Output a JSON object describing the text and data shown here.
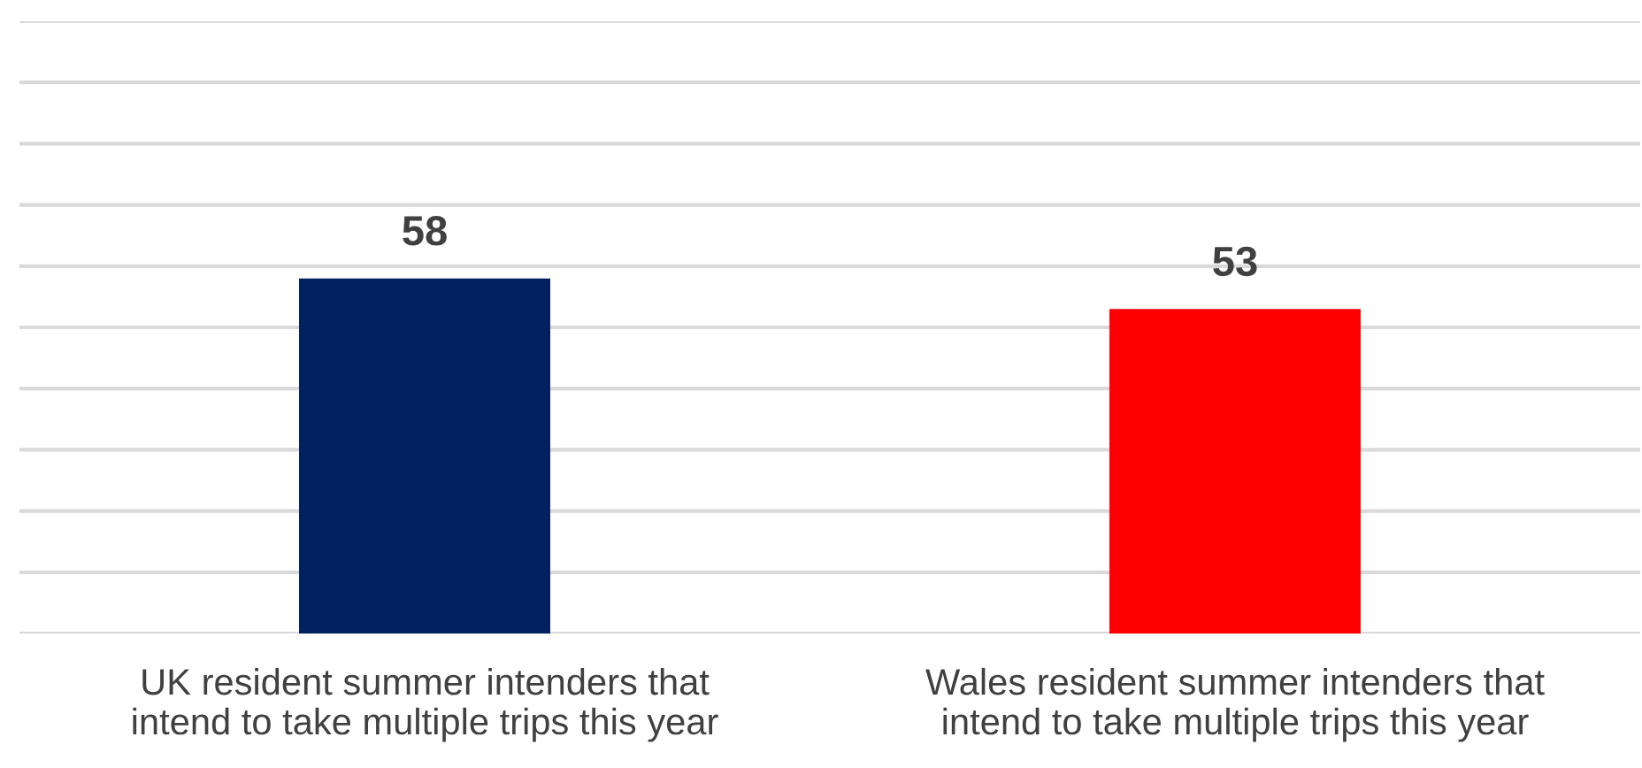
{
  "chart_data": {
    "type": "bar",
    "categories": [
      "UK resident summer intenders that intend to take multiple trips this year",
      "Wales resident summer intenders that intend to take multiple trips this year"
    ],
    "values": [
      58,
      53
    ],
    "colors": [
      "#002060",
      "#ff0000"
    ],
    "ylim": [
      0,
      100
    ],
    "yticks": [
      {
        "value": 0,
        "label": null
      },
      {
        "value": 10,
        "label": null
      },
      {
        "value": 20,
        "label": null
      },
      {
        "value": 30,
        "label": null
      },
      {
        "value": 40,
        "label": null
      },
      {
        "value": 50,
        "label": null
      },
      {
        "value": 60,
        "label": null
      },
      {
        "value": 70,
        "label": null
      },
      {
        "value": 80,
        "label": null
      },
      {
        "value": 90,
        "label": null
      },
      {
        "value": 100,
        "label": null
      }
    ],
    "grid": "y",
    "data_labels": true,
    "tick_labels": "x"
  }
}
